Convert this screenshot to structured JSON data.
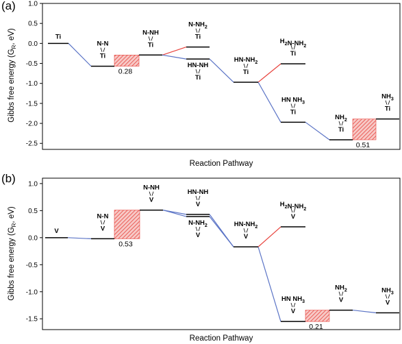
{
  "colors": {
    "blue_path": "#5b74c6",
    "red_path": "#e8433d",
    "barrier_fill": "#e8433d",
    "level": "#000000"
  },
  "chart_data": [
    {
      "panel": "(a)",
      "type": "line",
      "xlabel": "Reaction Pathway",
      "ylabel": "Gibbs free energy (G_R, eV)",
      "ylim": [
        -2.65,
        1.0
      ],
      "yticks": [
        "1.0",
        "0.5",
        "0.0",
        "-0.5",
        "-1.0",
        "-1.5",
        "-2.0",
        "-2.5"
      ],
      "ytick_values": [
        1.0,
        0.5,
        0.0,
        -0.5,
        -1.0,
        -1.5,
        -2.0,
        -2.5
      ],
      "grid": false,
      "levels": [
        {
          "label": "Ti",
          "x": 0,
          "energy": 0.0
        },
        {
          "label": "N-N / Ti",
          "x": 1,
          "energy": -0.57
        },
        {
          "label": "N-NH / Ti",
          "x": 2,
          "energy": -0.29
        },
        {
          "label": "N-NH2 / Ti",
          "x": 3,
          "energy": -0.09
        },
        {
          "label": "HN-NH / Ti",
          "x": 3,
          "energy": -0.39
        },
        {
          "label": "HN-NH2 / Ti",
          "x": 4,
          "energy": -0.97
        },
        {
          "label": "H2N-NH2 / Ti",
          "x": 5,
          "energy": -0.51
        },
        {
          "label": "HN NH3 / Ti",
          "x": 5,
          "energy": -1.97
        },
        {
          "label": "NH2 / Ti",
          "x": 6,
          "energy": -2.41
        },
        {
          "label": "NH3 / Ti",
          "x": 7,
          "energy": -1.89
        }
      ],
      "connections": [
        {
          "from": 0,
          "to": 1,
          "path": "blue"
        },
        {
          "from": 1,
          "to": 2,
          "path": "blue"
        },
        {
          "from": 2,
          "to": 3,
          "path": "red"
        },
        {
          "from": 2,
          "to": 4,
          "path": "blue"
        },
        {
          "from": 4,
          "to": 5,
          "path": "blue"
        },
        {
          "from": 5,
          "to": 6,
          "path": "red"
        },
        {
          "from": 5,
          "to": 7,
          "path": "blue"
        },
        {
          "from": 7,
          "to": 8,
          "path": "blue"
        },
        {
          "from": 8,
          "to": 9,
          "path": "blue"
        }
      ],
      "barriers": [
        {
          "value": "0.28",
          "from": 1,
          "to": 2
        },
        {
          "value": "0.51",
          "from": 8,
          "to": 9
        }
      ]
    },
    {
      "panel": "(b)",
      "type": "line",
      "xlabel": "Reaction Pathway",
      "ylabel": "Gibbs free energy (G_R, eV)",
      "ylim": [
        -1.7,
        1.1
      ],
      "yticks": [
        "1.0",
        "0.5",
        "0.0",
        "-0.5",
        "-1.0",
        "-1.5"
      ],
      "ytick_values": [
        1.0,
        0.5,
        0.0,
        -0.5,
        -1.0,
        -1.5
      ],
      "grid": false,
      "levels": [
        {
          "label": "V",
          "x": 0,
          "energy": 0.0
        },
        {
          "label": "N-N / V",
          "x": 1,
          "energy": -0.02
        },
        {
          "label": "N-NH / V",
          "x": 2,
          "energy": 0.51
        },
        {
          "label": "HN-NH / V",
          "x": 3,
          "energy": 0.43
        },
        {
          "label": "N-NH2 / V",
          "x": 3,
          "energy": 0.39
        },
        {
          "label": "HN-NH2 / V",
          "x": 4,
          "energy": -0.17
        },
        {
          "label": "H2N-NH2 / V",
          "x": 5,
          "energy": 0.2
        },
        {
          "label": "HN NH3 / V",
          "x": 5,
          "energy": -1.55
        },
        {
          "label": "NH2 / V",
          "x": 6,
          "energy": -1.34
        },
        {
          "label": "NH3 / V",
          "x": 7,
          "energy": -1.39
        }
      ],
      "connections": [
        {
          "from": 0,
          "to": 1,
          "path": "blue"
        },
        {
          "from": 1,
          "to": 2,
          "path": "blue"
        },
        {
          "from": 2,
          "to": 3,
          "path": "blue"
        },
        {
          "from": 2,
          "to": 4,
          "path": "blue"
        },
        {
          "from": 3,
          "to": 5,
          "path": "blue"
        },
        {
          "from": 4,
          "to": 5,
          "path": "blue"
        },
        {
          "from": 5,
          "to": 6,
          "path": "red"
        },
        {
          "from": 5,
          "to": 7,
          "path": "blue"
        },
        {
          "from": 7,
          "to": 8,
          "path": "blue"
        },
        {
          "from": 8,
          "to": 9,
          "path": "blue"
        }
      ],
      "barriers": [
        {
          "value": "0.53",
          "from": 1,
          "to": 2
        },
        {
          "value": "0.21",
          "from": 7,
          "to": 8
        }
      ]
    }
  ]
}
